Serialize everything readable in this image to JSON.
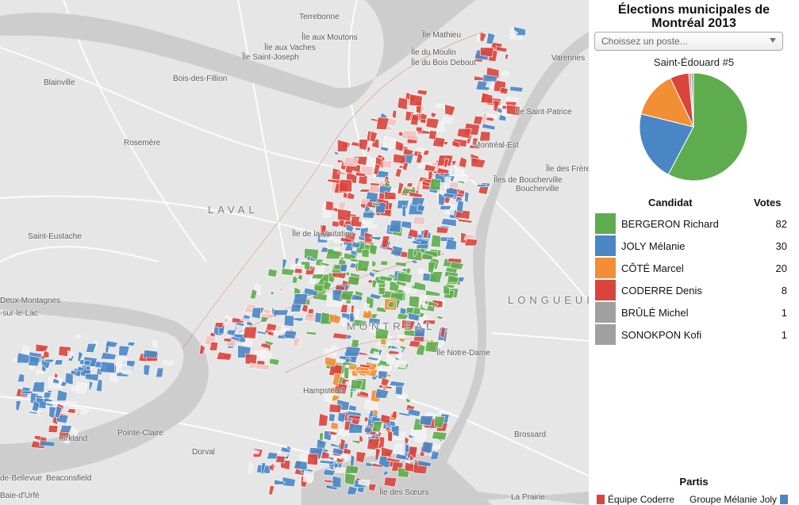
{
  "title_line1": "Élections municipales de",
  "title_line2": "Montréal 2013",
  "select": {
    "placeholder": "Choissez un poste..."
  },
  "poste": "Saint-Édouard #5",
  "table": {
    "col_candidat": "Candidat",
    "col_votes": "Votes"
  },
  "candidates": [
    {
      "name": "BERGERON Richard",
      "votes": 82,
      "color": "#5fac4e"
    },
    {
      "name": "JOLY Mélanie",
      "votes": 30,
      "color": "#4a86c5"
    },
    {
      "name": "CÔTÉ Marcel",
      "votes": 20,
      "color": "#f28e33"
    },
    {
      "name": "CODERRE Denis",
      "votes": 8,
      "color": "#d9453d"
    },
    {
      "name": "BRÛLÉ Michel",
      "votes": 1,
      "color": "#a0a0a0"
    },
    {
      "name": "SONOKPON Kofi",
      "votes": 1,
      "color": "#a0a0a0"
    }
  ],
  "partis": {
    "title": "Partis",
    "items": [
      {
        "label": "Équipe Coderre",
        "color": "#d9453d"
      },
      {
        "label": "Groupe Mélanie Joly",
        "color": "#4a86c5"
      }
    ]
  },
  "map_labels": {
    "terrebonne": "Terrebonne",
    "ile_aux_moutons": "Île aux Moutons",
    "ile_aux_vaches": "Île aux Vaches",
    "ile_saint_joseph": "Île Saint-Joseph",
    "ile_mathieu": "Île Mathieu",
    "ile_du_moulin": "Île du Moulin",
    "ile_du_bois_debout": "Île du Bois Debout",
    "varennes": "Varennes",
    "blainville": "Blainville",
    "bois_des_fillion": "Bois-des-Fillion",
    "ile_saint_patrice": "Île Saint-Patrice",
    "rosemere": "Rosemère",
    "montreal_est": "Montréal-Est",
    "ile_des_freres": "Île des Frères",
    "iles_de_boucherville": "Îles de Boucherville",
    "boucherville": "Boucherville",
    "laval": "LAVAL",
    "saint_eustache": "Saint-Eustache",
    "ile_de_la_visitation": "Île de la Visitation",
    "deux_montagnes": "Deux-Montagnes",
    "sur_le_lac": "-sur-le-Lac",
    "longueuil": "LONGUEUIL",
    "montreal": "MONTRÉAL",
    "ile_notre_dame": "Île Notre-Dame",
    "hampstead": "Hampstead",
    "kirkland": "Kirkland",
    "pointe_claire": "Pointe-Claire",
    "brossard": "Brossard",
    "dorval": "Dorval",
    "de_bellevue": "de-Bellevue",
    "beaconsfield": "Beaconsfield",
    "ile_des_soeurs": "Île des Sœurs",
    "la_prairie": "La Prairie",
    "baie_durfe": "Baie-d'Urfé"
  }
}
